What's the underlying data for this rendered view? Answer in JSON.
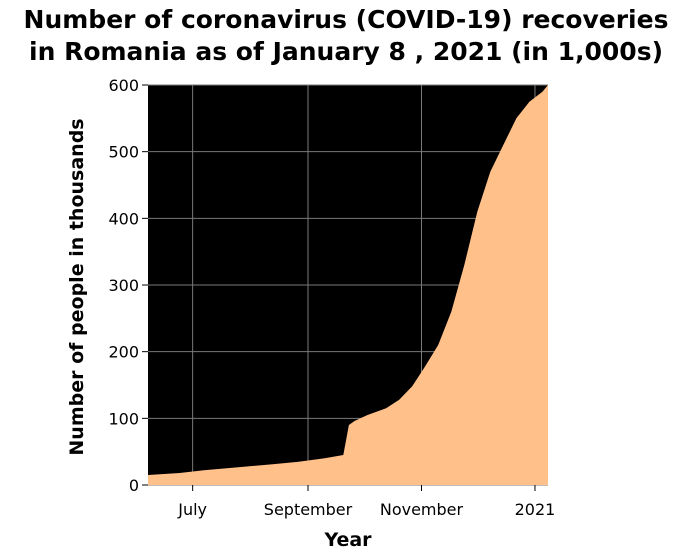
{
  "chart_data": {
    "type": "area",
    "title_line1": "Number of coronavirus (COVID-19) recoveries",
    "title_line2": "in Romania as of January 8 , 2021 (in 1,000s)",
    "xlabel": "Year",
    "ylabel": "Number of people in thousands",
    "x_ticks": [
      {
        "label": "July",
        "date": "2020-07-01"
      },
      {
        "label": "September",
        "date": "2020-09-01"
      },
      {
        "label": "November",
        "date": "2020-11-01"
      },
      {
        "label": "2021",
        "date": "2021-01-01"
      }
    ],
    "y_ticks": [
      0,
      100,
      200,
      300,
      400,
      500,
      600
    ],
    "xlim": [
      "2020-06-07",
      "2021-01-08"
    ],
    "ylim": [
      0,
      600
    ],
    "grid": true,
    "fill_color": "#ffc08a",
    "panel_color": "#000000",
    "grid_color": "#7a7a7a",
    "series": [
      {
        "x": [
          "2020-06-07",
          "2020-06-24",
          "2020-07-07",
          "2020-07-27",
          "2020-08-13",
          "2020-08-27",
          "2020-09-10",
          "2020-09-20",
          "2020-09-23",
          "2020-09-26",
          "2020-10-03",
          "2020-10-13",
          "2020-10-20",
          "2020-10-27",
          "2020-11-03",
          "2020-11-10",
          "2020-11-17",
          "2020-11-24",
          "2020-12-01",
          "2020-12-08",
          "2020-12-15",
          "2020-12-22",
          "2020-12-29",
          "2021-01-05",
          "2021-01-08"
        ],
        "y": [
          15,
          18,
          22,
          27,
          31,
          35,
          40,
          45,
          90,
          96,
          105,
          115,
          128,
          148,
          178,
          210,
          260,
          330,
          410,
          470,
          510,
          550,
          575,
          590,
          600
        ]
      }
    ]
  }
}
